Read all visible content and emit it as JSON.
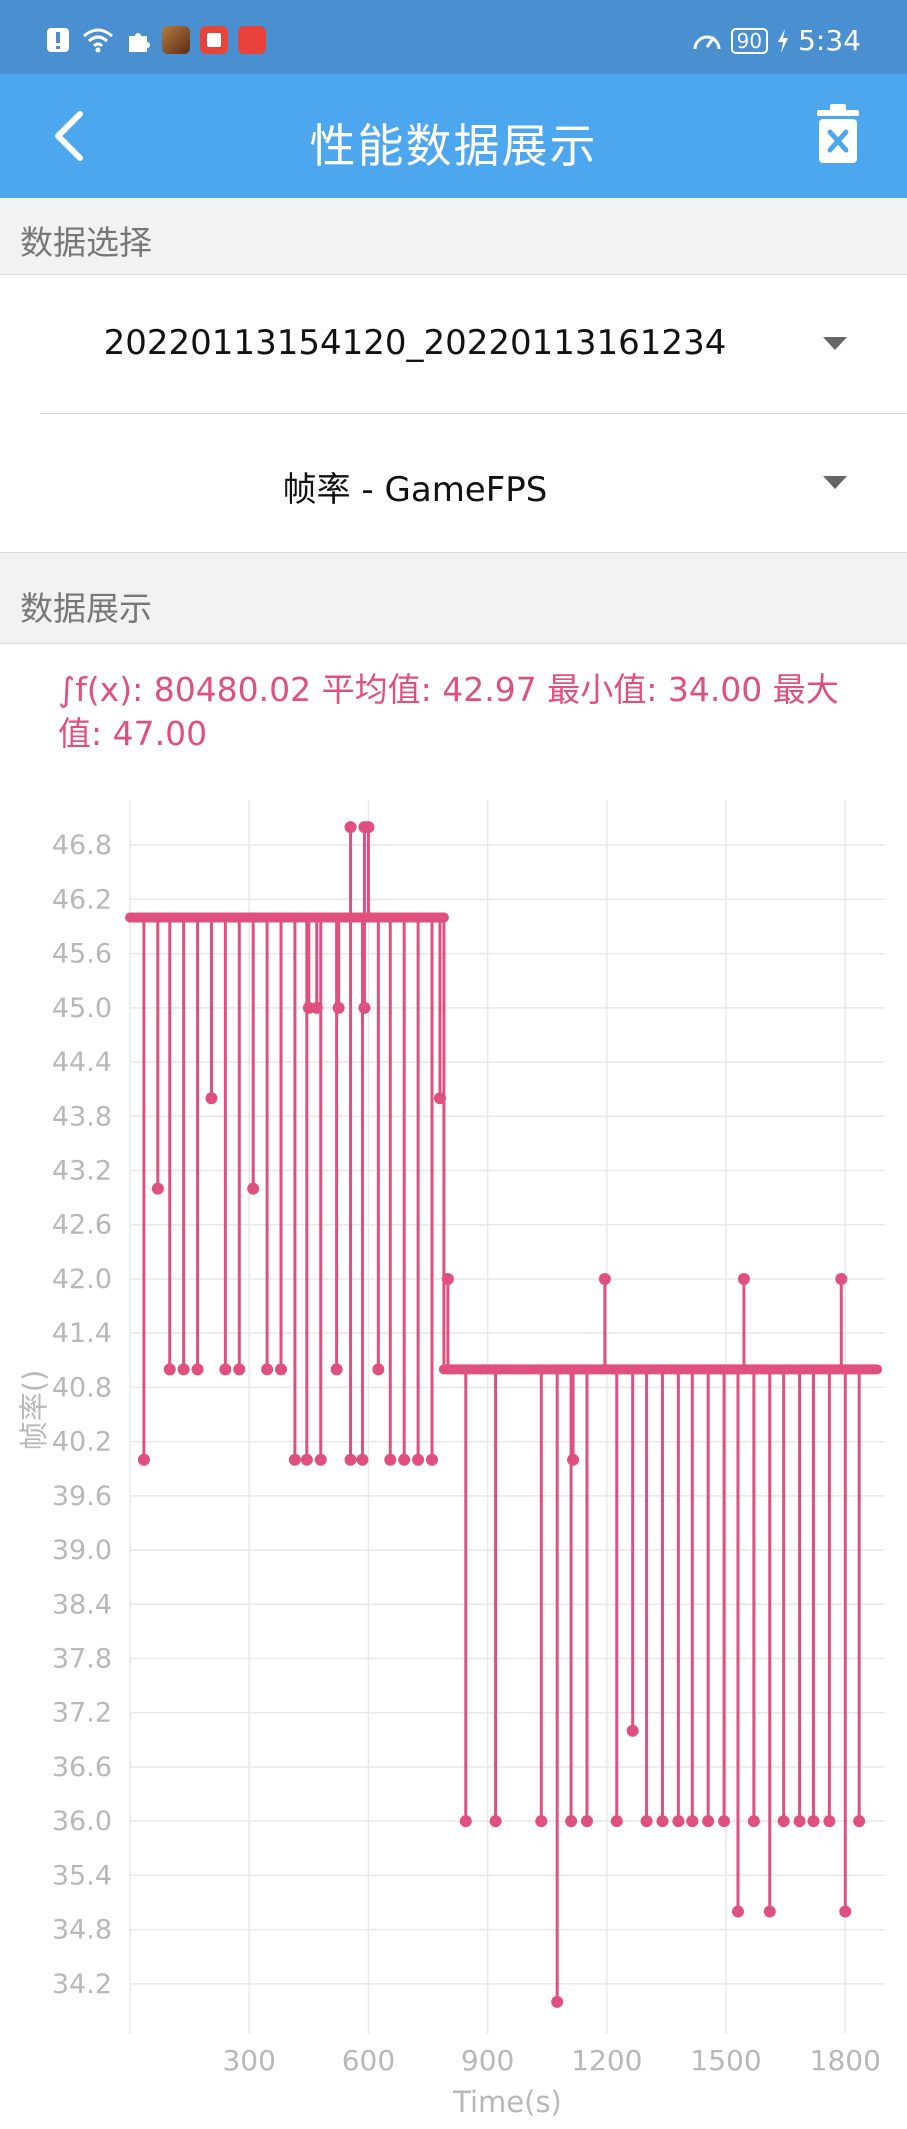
{
  "status_bar": {
    "time": "5:34",
    "battery": "90",
    "icons": [
      "notification-alert-icon",
      "wifi-icon",
      "puzzle-icon",
      "game-app-icon",
      "book-app-icon",
      "huawei-app-icon"
    ]
  },
  "app_bar": {
    "title": "性能数据展示",
    "back_icon": "chevron-left-icon",
    "delete_icon": "trash-icon"
  },
  "data_select": {
    "header": "数据选择",
    "session": "20220113154120_20220113161234",
    "metric": "帧率 - GameFPS"
  },
  "data_display": {
    "header": "数据展示",
    "stats": "∫f(x): 80480.02 平均值: 42.97 最小值: 34.00 最大值: 47.00"
  },
  "colors": {
    "accent": "#4da7ee",
    "status": "#4a90d0",
    "series": "#e0507f"
  },
  "chart_data": {
    "type": "line",
    "xlabel": "Time(s)",
    "ylabel": "帧率()",
    "x_ticks": [
      300,
      600,
      900,
      1200,
      1500,
      1800
    ],
    "y_ticks": [
      34.2,
      34.8,
      35.4,
      36.0,
      36.6,
      37.2,
      37.8,
      38.4,
      39.0,
      39.6,
      40.2,
      40.8,
      41.4,
      42.0,
      42.6,
      43.2,
      43.8,
      44.4,
      45.0,
      45.6,
      46.2,
      46.8
    ],
    "xlim": [
      0,
      1900
    ],
    "ylim": [
      33.8,
      47.3
    ],
    "grid": true,
    "series": [
      {
        "baseline_segments": [
          {
            "from": 0,
            "to": 790,
            "value": 46
          },
          {
            "from": 790,
            "to": 1880,
            "value": 41
          }
        ],
        "dips": [
          {
            "x": 35,
            "value": 40
          },
          {
            "x": 70,
            "value": 43
          },
          {
            "x": 100,
            "value": 41
          },
          {
            "x": 135,
            "value": 41
          },
          {
            "x": 170,
            "value": 41
          },
          {
            "x": 205,
            "value": 44
          },
          {
            "x": 240,
            "value": 41
          },
          {
            "x": 275,
            "value": 41
          },
          {
            "x": 310,
            "value": 43
          },
          {
            "x": 345,
            "value": 41
          },
          {
            "x": 380,
            "value": 41
          },
          {
            "x": 415,
            "value": 40
          },
          {
            "x": 445,
            "value": 40
          },
          {
            "x": 450,
            "value": 45
          },
          {
            "x": 470,
            "value": 45
          },
          {
            "x": 480,
            "value": 40
          },
          {
            "x": 520,
            "value": 41
          },
          {
            "x": 525,
            "value": 45
          },
          {
            "x": 555,
            "value": 40
          },
          {
            "x": 585,
            "value": 40
          },
          {
            "x": 590,
            "value": 45
          },
          {
            "x": 625,
            "value": 41
          },
          {
            "x": 655,
            "value": 40
          },
          {
            "x": 690,
            "value": 40
          },
          {
            "x": 725,
            "value": 40
          },
          {
            "x": 760,
            "value": 40
          },
          {
            "x": 780,
            "value": 44
          },
          {
            "x": 845,
            "value": 36
          },
          {
            "x": 920,
            "value": 36
          },
          {
            "x": 1035,
            "value": 36
          },
          {
            "x": 1075,
            "value": 34
          },
          {
            "x": 1110,
            "value": 36
          },
          {
            "x": 1115,
            "value": 40
          },
          {
            "x": 1150,
            "value": 36
          },
          {
            "x": 1225,
            "value": 36
          },
          {
            "x": 1265,
            "value": 37
          },
          {
            "x": 1300,
            "value": 36
          },
          {
            "x": 1340,
            "value": 36
          },
          {
            "x": 1380,
            "value": 36
          },
          {
            "x": 1415,
            "value": 36
          },
          {
            "x": 1455,
            "value": 36
          },
          {
            "x": 1495,
            "value": 36
          },
          {
            "x": 1530,
            "value": 35
          },
          {
            "x": 1570,
            "value": 36
          },
          {
            "x": 1610,
            "value": 35
          },
          {
            "x": 1645,
            "value": 36
          },
          {
            "x": 1685,
            "value": 36
          },
          {
            "x": 1720,
            "value": 36
          },
          {
            "x": 1760,
            "value": 36
          },
          {
            "x": 1800,
            "value": 35
          },
          {
            "x": 1835,
            "value": 36
          }
        ],
        "spikes": [
          {
            "x": 555,
            "value": 47
          },
          {
            "x": 590,
            "value": 47
          },
          {
            "x": 600,
            "value": 47
          },
          {
            "x": 800,
            "value": 42
          },
          {
            "x": 1195,
            "value": 42
          },
          {
            "x": 1545,
            "value": 42
          },
          {
            "x": 1790,
            "value": 42
          }
        ]
      }
    ]
  }
}
